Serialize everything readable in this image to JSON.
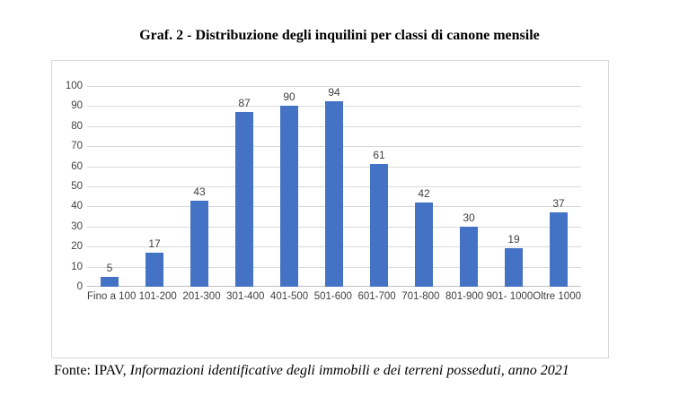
{
  "title": "Graf. 2 - Distribuzione degli inquilini per classi di canone mensile",
  "footer": {
    "prefix": "Fonte: IPAV, ",
    "italic": "Informazioni identificative degli immobili e dei terreni posseduti, anno 2021"
  },
  "chart_data": {
    "type": "bar",
    "title": "Graf. 2 - Distribuzione degli inquilini per classi di canone mensile",
    "categories": [
      "Fino a 100",
      "101-200",
      "201-300",
      "301-400",
      "401-500",
      "501-600",
      "601-700",
      "701-800",
      "801-900",
      "901- 1000",
      "Oltre 1000"
    ],
    "values": [
      5,
      17,
      43,
      87,
      90,
      94,
      61,
      42,
      30,
      19,
      37
    ],
    "xlabel": "",
    "ylabel": "",
    "ylim": [
      0,
      100
    ],
    "ytick_step": 10,
    "grid": true,
    "legend": "none",
    "data_labels": true,
    "bar_color": "#4472C4",
    "gridline_color": "#D9D9D9",
    "axis_label_color": "#404040"
  }
}
